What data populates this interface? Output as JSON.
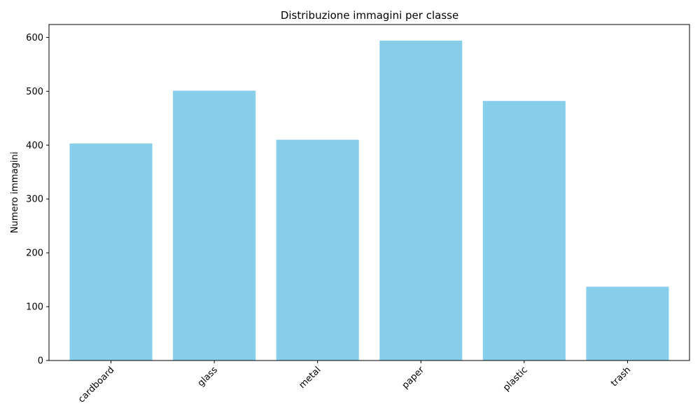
{
  "chart_data": {
    "type": "bar",
    "title": "Distribuzione immagini per classe",
    "xlabel": "",
    "ylabel": "Numero immagini",
    "categories": [
      "cardboard",
      "glass",
      "metal",
      "paper",
      "plastic",
      "trash"
    ],
    "values": [
      403,
      501,
      410,
      594,
      482,
      137
    ],
    "ylim": [
      0,
      624
    ],
    "yticks": [
      0,
      100,
      200,
      300,
      400,
      500,
      600
    ],
    "xtick_rotation": 45,
    "bar_color": "#87ceeb",
    "grid": false,
    "legend": "none"
  }
}
